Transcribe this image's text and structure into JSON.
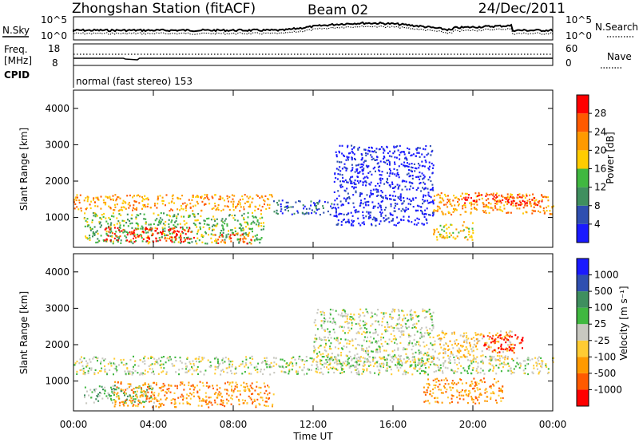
{
  "header": {
    "station": "Zhongshan Station (fitACF)",
    "beam": "Beam 02",
    "date": "24/Dec/2011"
  },
  "top_panels": {
    "nsky_label": "N.Sky",
    "nsky_ticks": [
      "10^5",
      "10^0"
    ],
    "nsearch_label": "N.Search",
    "nsearch_ticks": [
      "10^5",
      "10^0"
    ],
    "freq_label": "Freq.",
    "freq_unit": "[MHz]",
    "freq_ticks": [
      "18",
      "8"
    ],
    "nave_label": "Nave",
    "nave_ticks": [
      "60",
      "0"
    ],
    "cpid_label": "CPID",
    "cpid_text": "normal (fast stereo) 153"
  },
  "colors": {
    "power_scale": [
      "#1a1aff",
      "#2f4fb0",
      "#3f8f5f",
      "#40b840",
      "#ffcc00",
      "#ff9a00",
      "#ff5a00",
      "#ff0000"
    ],
    "velocity_scale": [
      "#ff0000",
      "#ff5a00",
      "#ff9a00",
      "#ffcc33",
      "#c8c8c0",
      "#40b840",
      "#3f8f5f",
      "#2f4fb0",
      "#1a1aff"
    ]
  },
  "chart_data": [
    {
      "type": "heatmap",
      "name": "power",
      "ylabel": "Slant Range [km]",
      "ylim": [
        180,
        4500
      ],
      "yticks": [
        "4000",
        "3000",
        "2000",
        "1000"
      ],
      "colorbar_label": "Power [dB]",
      "colorbar_ticks": [
        "28",
        "24",
        "20",
        "16",
        "12",
        "8",
        "4"
      ],
      "regions": [
        {
          "x": [
            0.0,
            10.0
          ],
          "y": [
            1200,
            1650
          ],
          "level": 5
        },
        {
          "x": [
            0.5,
            9.5
          ],
          "y": [
            300,
            1150
          ],
          "level": 3
        },
        {
          "x": [
            1.5,
            6.0
          ],
          "y": [
            350,
            750
          ],
          "level": 7
        },
        {
          "x": [
            7.0,
            9.0
          ],
          "y": [
            300,
            600
          ],
          "level": 6
        },
        {
          "x": [
            10.0,
            13.0
          ],
          "y": [
            1100,
            1500
          ],
          "level": 1
        },
        {
          "x": [
            13.0,
            18.0
          ],
          "y": [
            800,
            3000
          ],
          "level": 0
        },
        {
          "x": [
            18.0,
            24.0
          ],
          "y": [
            1100,
            1700
          ],
          "level": 5
        },
        {
          "x": [
            19.5,
            23.5
          ],
          "y": [
            1350,
            1650
          ],
          "level": 7
        },
        {
          "x": [
            18.0,
            20.0
          ],
          "y": [
            400,
            900
          ],
          "level": 4
        }
      ]
    },
    {
      "type": "heatmap",
      "name": "velocity",
      "ylabel": "Slant Range [km]",
      "ylim": [
        180,
        4500
      ],
      "yticks": [
        "4000",
        "3000",
        "2000",
        "1000"
      ],
      "colorbar_label": "Velocity [m s⁻¹]",
      "colorbar_ticks": [
        "1000",
        "500",
        "100",
        "25",
        "-25",
        "-100",
        "-500",
        "-1000"
      ],
      "regions": [
        {
          "x": [
            0.0,
            24.0
          ],
          "y": [
            1200,
            1700
          ],
          "level": 4
        },
        {
          "x": [
            0.5,
            4.0
          ],
          "y": [
            400,
            900
          ],
          "level": 5
        },
        {
          "x": [
            2.0,
            10.0
          ],
          "y": [
            300,
            1000
          ],
          "level": 2
        },
        {
          "x": [
            12.0,
            18.0
          ],
          "y": [
            1400,
            3000
          ],
          "level": 4
        },
        {
          "x": [
            17.5,
            21.5
          ],
          "y": [
            400,
            1100
          ],
          "level": 2
        },
        {
          "x": [
            18.0,
            22.0
          ],
          "y": [
            1600,
            2400
          ],
          "level": 3
        },
        {
          "x": [
            20.5,
            22.5
          ],
          "y": [
            1800,
            2300
          ],
          "level": 0
        }
      ]
    }
  ],
  "xaxis": {
    "ticks": [
      "00:00",
      "04:00",
      "08:00",
      "12:00",
      "16:00",
      "20:00",
      "00:00"
    ],
    "label": "Time UT"
  }
}
